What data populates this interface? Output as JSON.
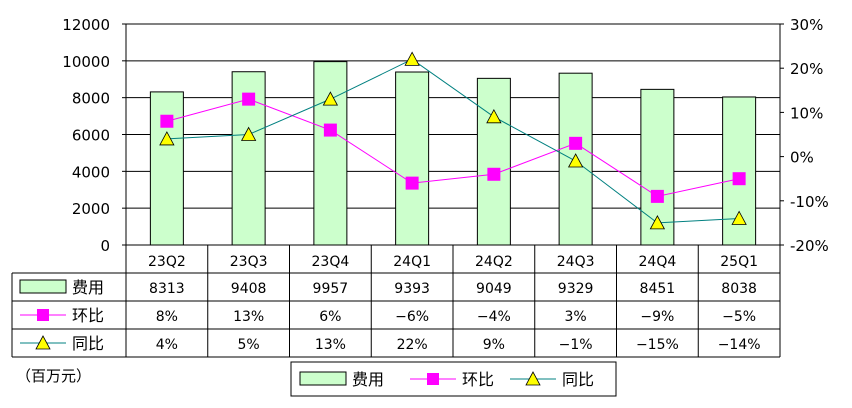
{
  "chart_data": {
    "type": "bar",
    "categories": [
      "23Q2",
      "23Q3",
      "23Q4",
      "24Q1",
      "24Q2",
      "24Q3",
      "24Q4",
      "25Q1"
    ],
    "left_axis": {
      "ylim": [
        0,
        12000
      ],
      "ticks": [
        "0",
        "2000",
        "4000",
        "6000",
        "8000",
        "10000",
        "12000"
      ]
    },
    "right_axis": {
      "ylim": [
        -20,
        30
      ],
      "ticks": [
        "-20%",
        "-10%",
        "0%",
        "10%",
        "20%",
        "30%"
      ]
    },
    "unit_label": "（百万元）",
    "grid": true,
    "legend_position": "bottom",
    "series": [
      {
        "name": "费用",
        "kind": "bar",
        "axis": "left",
        "color": "#ccffcc",
        "values": [
          8313,
          9408,
          9957,
          9393,
          9049,
          9329,
          8451,
          8038
        ],
        "labels": [
          "8313",
          "9408",
          "9957",
          "9393",
          "9049",
          "9329",
          "8451",
          "8038"
        ]
      },
      {
        "name": "环比",
        "kind": "line",
        "axis": "right",
        "color": "#ff00ff",
        "marker": "square",
        "values": [
          8,
          13,
          6,
          -6,
          -4,
          3,
          -9,
          -5
        ],
        "labels": [
          "8%",
          "13%",
          "6%",
          "−6%",
          "−4%",
          "3%",
          "−9%",
          "−5%"
        ]
      },
      {
        "name": "同比",
        "kind": "line",
        "axis": "right",
        "color": "#008080",
        "marker": "triangle",
        "marker_color": "#ffff00",
        "values": [
          4,
          5,
          13,
          22,
          9,
          -1,
          -15,
          -14
        ],
        "labels": [
          "4%",
          "5%",
          "13%",
          "22%",
          "9%",
          "−1%",
          "−15%",
          "−14%"
        ]
      }
    ]
  }
}
